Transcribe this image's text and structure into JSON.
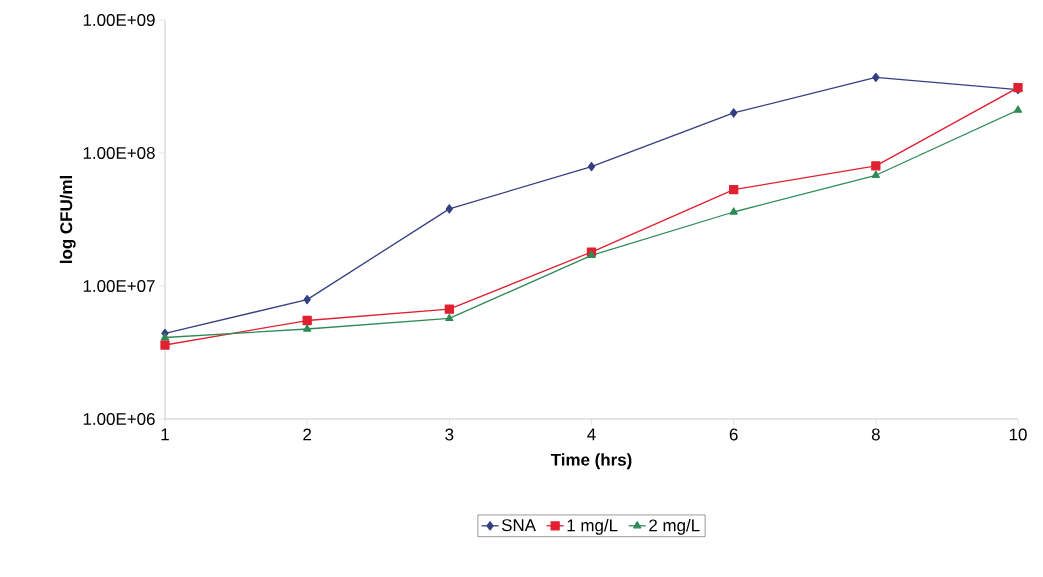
{
  "chart_data": {
    "type": "line",
    "xlabel": "Time (hrs)",
    "ylabel": "log CFU/ml",
    "categories": [
      "1",
      "2",
      "3",
      "4",
      "6",
      "8",
      "10"
    ],
    "log": "y",
    "ylim": [
      1000000,
      1000000000
    ],
    "yticks": [
      {
        "value": 1000000,
        "label": "1.00E+06"
      },
      {
        "value": 10000000,
        "label": "1.00E+07"
      },
      {
        "value": 100000000,
        "label": "1.00E+08"
      },
      {
        "value": 1000000000,
        "label": "1.00E+09"
      }
    ],
    "grid": false,
    "legend": "bottom",
    "line_style": "solid",
    "series": [
      {
        "name": "SNA",
        "color": "#333f80",
        "marker": "diamond",
        "values": [
          4400000,
          7900000,
          38000000,
          79000000,
          200000000,
          370000000,
          300000000
        ]
      },
      {
        "name": "1 mg/L",
        "color": "#e02030",
        "marker": "square",
        "values": [
          3600000,
          5500000,
          6700000,
          18000000,
          53000000,
          80000000,
          310000000
        ]
      },
      {
        "name": "2 mg/L",
        "color": "#2e8b57",
        "marker": "triangle",
        "values": [
          4100000,
          4750000,
          5700000,
          17000000,
          36000000,
          68000000,
          210000000
        ]
      }
    ]
  }
}
